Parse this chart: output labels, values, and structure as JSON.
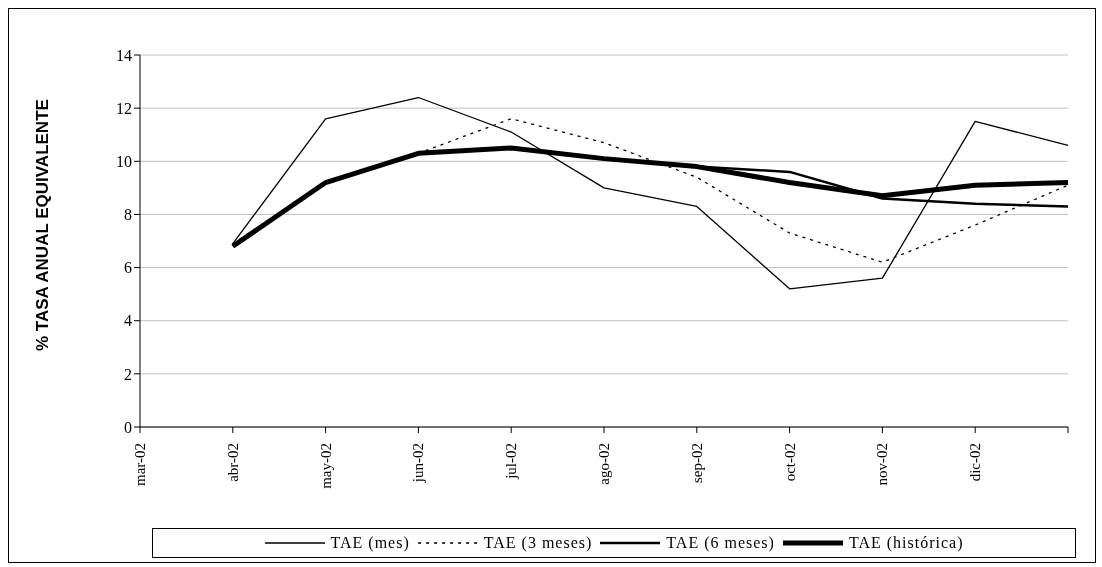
{
  "chart_data": {
    "type": "line",
    "ylabel": "% TASA ANUAL EQUIVALENTE",
    "categories": [
      "mar-02",
      "abr-02",
      "may-02",
      "jun-02",
      "jul-02",
      "ago-02",
      "sep-02",
      "oct-02",
      "nov-02",
      "dic-02",
      null
    ],
    "series": [
      {
        "name": "TAE (mes)",
        "color": "#000000",
        "line_style": "solid",
        "values": [
          null,
          6.9,
          11.6,
          12.4,
          11.1,
          9.0,
          8.3,
          5.2,
          5.6,
          11.5,
          10.6
        ]
      },
      {
        "name": "TAE (3 meses)",
        "color": "#000000",
        "line_style": "dotted",
        "values": [
          null,
          6.9,
          9.2,
          10.3,
          11.6,
          10.7,
          9.4,
          7.3,
          6.2,
          7.6,
          9.1
        ]
      },
      {
        "name": "TAE (6 meses)",
        "color": "#000000",
        "line_style": "solid",
        "values": [
          null,
          6.8,
          9.2,
          10.3,
          10.5,
          10.1,
          9.8,
          9.6,
          8.6,
          8.4,
          8.3
        ]
      },
      {
        "name": "TAE (histórica)",
        "color": "#000000",
        "line_style": "solid",
        "values": [
          null,
          6.8,
          9.2,
          10.3,
          10.5,
          10.1,
          9.8,
          9.2,
          8.7,
          9.1,
          9.2
        ]
      }
    ],
    "ylim": [
      0,
      14
    ],
    "yticks": [
      0,
      2,
      4,
      6,
      8,
      10,
      12,
      14
    ],
    "grid": "y",
    "legend": "bottom",
    "marker": "none"
  }
}
